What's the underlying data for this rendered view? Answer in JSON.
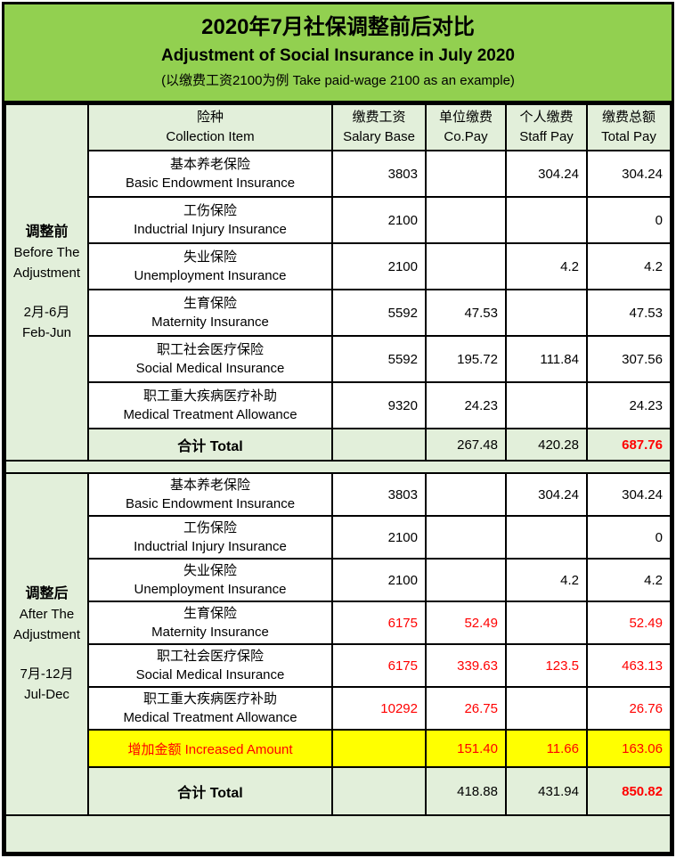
{
  "colors": {
    "header_green": "#92D050",
    "light_green": "#E2EFDA",
    "highlight_yellow": "#FFFF00",
    "alert_red": "#FF0000"
  },
  "title": {
    "line1_zh": "2020年7月社保调整前后对比",
    "line2_en": "Adjustment of Social Insurance in July 2020",
    "line3_note": "(以缴费工资2100为例 Take paid-wage 2100 as an example)"
  },
  "columns": [
    {
      "zh": "险种",
      "en": "Collection Item"
    },
    {
      "zh": "缴费工资",
      "en": "Salary Base"
    },
    {
      "zh": "单位缴费",
      "en": "Co.Pay"
    },
    {
      "zh": "个人缴费",
      "en": "Staff Pay"
    },
    {
      "zh": "缴费总额",
      "en": "Total Pay"
    }
  ],
  "sections": [
    {
      "label_zh": "调整前",
      "label_en_1": "Before The",
      "label_en_2": "Adjustment",
      "period_zh": "2月-6月",
      "period_en": "Feb-Jun",
      "rows": [
        {
          "zh": "基本养老保险",
          "en": "Basic Endowment Insurance",
          "salary": "3803",
          "copay": "",
          "staff": "304.24",
          "total": "304.24"
        },
        {
          "zh": "工伤保险",
          "en": "Inductrial Injury Insurance",
          "salary": "2100",
          "copay": "",
          "staff": "",
          "total": "0"
        },
        {
          "zh": "失业保险",
          "en": "Unemployment Insurance",
          "salary": "2100",
          "copay": "",
          "staff": "4.2",
          "total": "4.2"
        },
        {
          "zh": "生育保险",
          "en": "Maternity Insurance",
          "salary": "5592",
          "copay": "47.53",
          "staff": "",
          "total": "47.53"
        },
        {
          "zh": "职工社会医疗保险",
          "en": "Social Medical Insurance",
          "salary": "5592",
          "copay": "195.72",
          "staff": "111.84",
          "total": "307.56"
        },
        {
          "zh": "职工重大疾病医疗补助",
          "en": "Medical Treatment Allowance",
          "salary": "9320",
          "copay": "24.23",
          "staff": "",
          "total": "24.23"
        }
      ],
      "total": {
        "label": "合计 Total",
        "salary": "",
        "copay": "267.48",
        "staff": "420.28",
        "total": "687.76"
      }
    },
    {
      "label_zh": "调整后",
      "label_en_1": "After The",
      "label_en_2": "Adjustment",
      "period_zh": "7月-12月",
      "period_en": "Jul-Dec",
      "rows": [
        {
          "zh": "基本养老保险",
          "en": "Basic Endowment Insurance",
          "salary": "3803",
          "copay": "",
          "staff": "304.24",
          "total": "304.24"
        },
        {
          "zh": "工伤保险",
          "en": "Inductrial Injury Insurance",
          "salary": "2100",
          "copay": "",
          "staff": "",
          "total": "0"
        },
        {
          "zh": "失业保险",
          "en": "Unemployment Insurance",
          "salary": "2100",
          "copay": "",
          "staff": "4.2",
          "total": "4.2"
        },
        {
          "zh": "生育保险",
          "en": "Maternity Insurance",
          "salary": "6175",
          "copay": "52.49",
          "staff": "",
          "total": "52.49"
        },
        {
          "zh": "职工社会医疗保险",
          "en": "Social Medical Insurance",
          "salary": "6175",
          "copay": "339.63",
          "staff": "123.5",
          "total": "463.13"
        },
        {
          "zh": "职工重大疾病医疗补助",
          "en": "Medical Treatment Allowance",
          "salary": "10292",
          "copay": "26.75",
          "staff": "",
          "total": "26.76"
        }
      ],
      "increase": {
        "label": "增加金额 Increased Amount",
        "salary": "",
        "copay": "151.40",
        "staff": "11.66",
        "total": "163.06"
      },
      "total": {
        "label": "合计 Total",
        "salary": "",
        "copay": "418.88",
        "staff": "431.94",
        "total": "850.82"
      }
    }
  ]
}
